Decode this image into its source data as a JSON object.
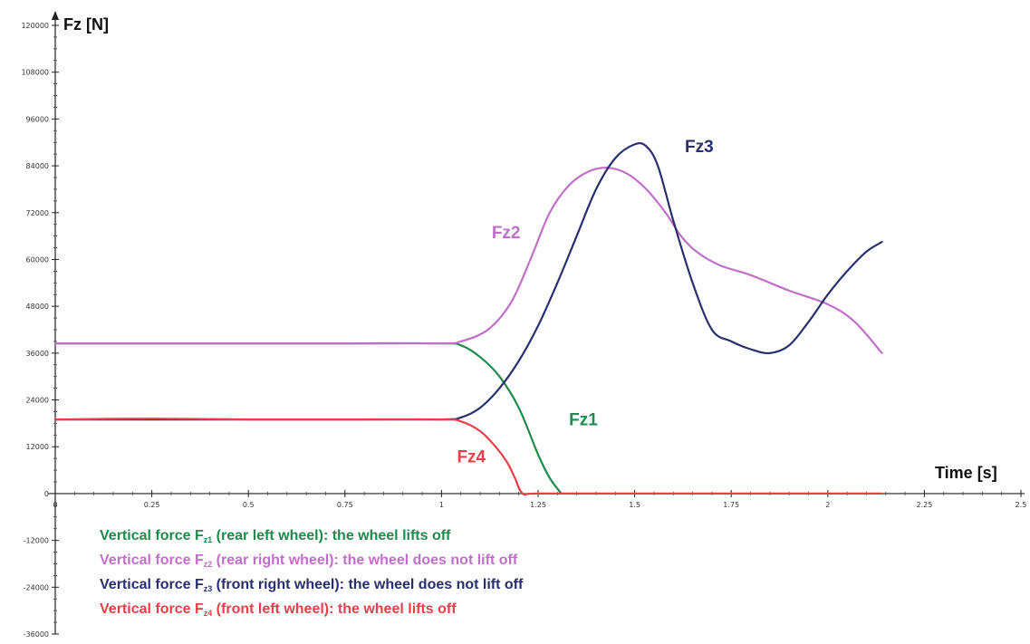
{
  "chart_data": {
    "type": "line",
    "ylabel": "Fz [N]",
    "xlabel": "Time [s]",
    "xlim": [
      0,
      2.5
    ],
    "ylim": [
      -36000,
      120000
    ],
    "x_ticks": [
      "0",
      "0.25",
      "0.5",
      "0.75",
      "1",
      "1.25",
      "1.5",
      "1.75",
      "2",
      "2.25",
      "2.5"
    ],
    "y_ticks": [
      "120000",
      "108000",
      "96000",
      "84000",
      "72000",
      "60000",
      "48000",
      "36000",
      "24000",
      "12000",
      "0",
      "-12000",
      "-24000",
      "-36000"
    ],
    "grid": false,
    "series": [
      {
        "name": "Fz1",
        "color": "#1e8a4c",
        "x": [
          0,
          0.25,
          0.5,
          0.75,
          1.0,
          1.05,
          1.1,
          1.15,
          1.2,
          1.25,
          1.28,
          1.31
        ],
        "y": [
          38500,
          38500,
          38500,
          38500,
          38500,
          38000,
          35000,
          30000,
          22000,
          10000,
          4000,
          0
        ]
      },
      {
        "name": "Fz2",
        "color": "#c070c8",
        "x": [
          0,
          0.25,
          0.5,
          0.75,
          1.0,
          1.05,
          1.12,
          1.18,
          1.23,
          1.28,
          1.33,
          1.38,
          1.43,
          1.48,
          1.53,
          1.58,
          1.62,
          1.66,
          1.72,
          1.8,
          1.9,
          2.0,
          2.07,
          2.14
        ],
        "y": [
          38500,
          38500,
          38500,
          38500,
          38500,
          39000,
          42000,
          49000,
          60000,
          72000,
          79000,
          82500,
          83500,
          82000,
          78000,
          72000,
          66000,
          62000,
          58500,
          56000,
          52000,
          48500,
          44000,
          36000
        ]
      },
      {
        "name": "Fz3",
        "color": "#2a2e6e",
        "x": [
          0,
          0.25,
          0.5,
          0.75,
          1.0,
          1.05,
          1.1,
          1.15,
          1.2,
          1.25,
          1.3,
          1.35,
          1.4,
          1.45,
          1.5,
          1.53,
          1.56,
          1.6,
          1.65,
          1.7,
          1.75,
          1.8,
          1.85,
          1.9,
          1.95,
          2.0,
          2.05,
          2.1,
          2.14
        ],
        "y": [
          19000,
          19000,
          19000,
          19000,
          19000,
          19500,
          22000,
          27000,
          34000,
          43000,
          54000,
          66000,
          78000,
          86000,
          89500,
          89000,
          84000,
          70000,
          54000,
          42000,
          39000,
          37000,
          36000,
          38000,
          44000,
          51000,
          57000,
          62000,
          64500
        ]
      },
      {
        "name": "Fz4",
        "color": "#e8404a",
        "x": [
          0,
          0.25,
          0.5,
          0.75,
          1.0,
          1.05,
          1.1,
          1.14,
          1.17,
          1.19,
          1.21,
          1.25,
          1.5,
          1.75,
          2.0,
          2.14
        ],
        "y": [
          19000,
          19200,
          19000,
          19000,
          19000,
          18500,
          16000,
          12000,
          8000,
          4000,
          0,
          0,
          0,
          0,
          0,
          0
        ]
      }
    ],
    "annotations": [
      {
        "text": "Fz1",
        "series": "Fz1",
        "x": 1.33,
        "y": 17500
      },
      {
        "text": "Fz2",
        "series": "Fz2",
        "x": 1.13,
        "y": 65500
      },
      {
        "text": "Fz3",
        "series": "Fz3",
        "x": 1.63,
        "y": 87500
      },
      {
        "text": "Fz4",
        "series": "Fz4",
        "x": 1.04,
        "y": 8000
      }
    ],
    "legend": {
      "placement": "bottom-left",
      "entries": [
        {
          "series": "Fz1",
          "prefix": "Vertical force F",
          "sub": "z1",
          "suffix": " (rear left wheel): the wheel lifts off"
        },
        {
          "series": "Fz2",
          "prefix": "Vertical force F",
          "sub": "z2",
          "suffix": " (rear right wheel): the wheel does not lift off"
        },
        {
          "series": "Fz3",
          "prefix": "Vertical force F",
          "sub": "z3",
          "suffix": " (front right wheel): the wheel does not lift off"
        },
        {
          "series": "Fz4",
          "prefix": "Vertical force F",
          "sub": "z4",
          "suffix": " (front left wheel): the wheel lifts off"
        }
      ]
    }
  }
}
